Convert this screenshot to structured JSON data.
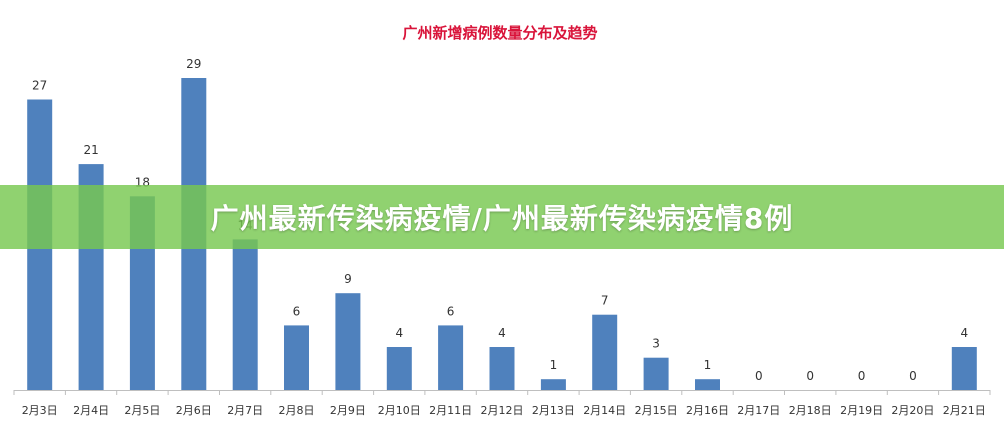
{
  "chart_data": {
    "type": "bar",
    "title": "广州新增病例数量分布及趋势",
    "categories": [
      "2月3日",
      "2月4日",
      "2月5日",
      "2月6日",
      "2月7日",
      "2月8日",
      "2月9日",
      "2月10日",
      "2月11日",
      "2月12日",
      "2月13日",
      "2月14日",
      "2月15日",
      "2月16日",
      "2月17日",
      "2月18日",
      "2月19日",
      "2月20日",
      "2月21日"
    ],
    "values": [
      27,
      21,
      18,
      29,
      14,
      6,
      9,
      4,
      6,
      4,
      1,
      7,
      3,
      1,
      0,
      0,
      0,
      0,
      4
    ],
    "xlabel": "",
    "ylabel": "",
    "ylim": [
      0,
      30
    ],
    "grid": false,
    "bar_color": "#4f81bd",
    "title_color": "#d9143a"
  },
  "banner": {
    "text": "广州最新传染病疫情/广州最新传染病疫情8例",
    "color": "#7ac850"
  }
}
